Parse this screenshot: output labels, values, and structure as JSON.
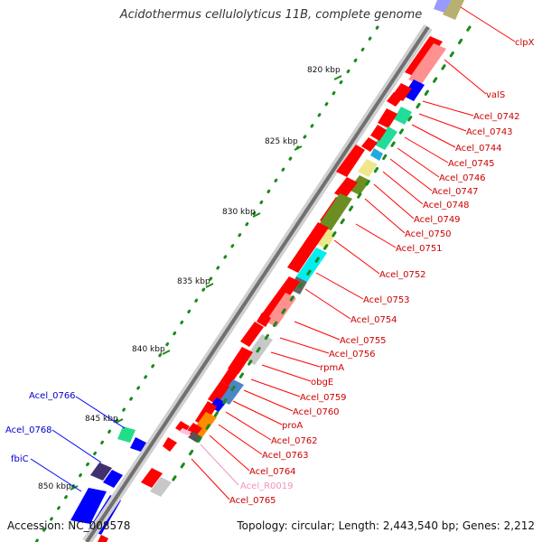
{
  "title": "Acidothermus cellulolyticus 11B, complete genome",
  "footer": {
    "accession": "Accession: NC_008578",
    "summary": "Topology: circular; Length: 2,443,540 bp; Genes: 2,212"
  },
  "scale": {
    "ticks": [
      "820 kbp",
      "825 kbp",
      "830 kbp",
      "835 kbp",
      "840 kbp",
      "845 kbp",
      "850 kbp"
    ]
  },
  "genes_right": [
    {
      "label": "clpX",
      "color": "#cc0000"
    },
    {
      "label": "valS",
      "color": "#cc0000"
    },
    {
      "label": "Acel_0742",
      "color": "#cc0000"
    },
    {
      "label": "Acel_0743",
      "color": "#cc0000"
    },
    {
      "label": "Acel_0744",
      "color": "#cc0000"
    },
    {
      "label": "Acel_0745",
      "color": "#cc0000"
    },
    {
      "label": "Acel_0746",
      "color": "#cc0000"
    },
    {
      "label": "Acel_0747",
      "color": "#cc0000"
    },
    {
      "label": "Acel_0748",
      "color": "#cc0000"
    },
    {
      "label": "Acel_0749",
      "color": "#cc0000"
    },
    {
      "label": "Acel_0750",
      "color": "#cc0000"
    },
    {
      "label": "Acel_0751",
      "color": "#cc0000"
    },
    {
      "label": "Acel_0752",
      "color": "#cc0000"
    },
    {
      "label": "Acel_0753",
      "color": "#cc0000"
    },
    {
      "label": "Acel_0754",
      "color": "#cc0000"
    },
    {
      "label": "Acel_0755",
      "color": "#cc0000"
    },
    {
      "label": "Acel_0756",
      "color": "#cc0000"
    },
    {
      "label": "rpmA",
      "color": "#cc0000"
    },
    {
      "label": "obgE",
      "color": "#cc0000"
    },
    {
      "label": "Acel_0759",
      "color": "#cc0000"
    },
    {
      "label": "Acel_0760",
      "color": "#cc0000"
    },
    {
      "label": "proA",
      "color": "#cc0000"
    },
    {
      "label": "Acel_0762",
      "color": "#cc0000"
    },
    {
      "label": "Acel_0763",
      "color": "#cc0000"
    },
    {
      "label": "Acel_0764",
      "color": "#cc0000"
    },
    {
      "label": "Acel_R0019",
      "color": "#f090c0"
    },
    {
      "label": "Acel_0765",
      "color": "#cc0000"
    }
  ],
  "genes_left": [
    {
      "label": "Acel_0766",
      "color": "#0000cc"
    },
    {
      "label": "Acel_0768",
      "color": "#0000cc"
    },
    {
      "label": "fbiC",
      "color": "#0000cc"
    }
  ],
  "colors": {
    "forward": "#ff0000",
    "reverse": "#0000ff",
    "backbone": "#808080",
    "gc_dots": "#1a8a1a"
  }
}
